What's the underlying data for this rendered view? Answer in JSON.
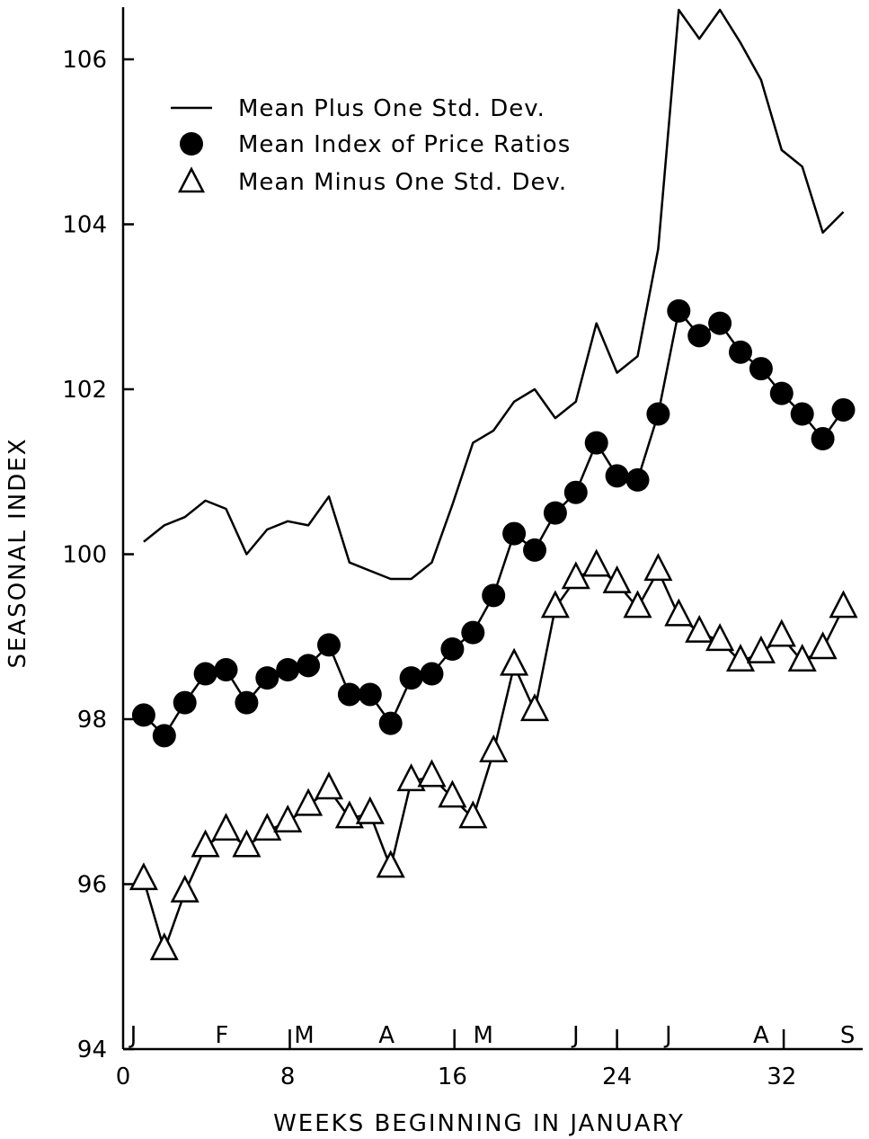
{
  "chart_data": {
    "type": "line",
    "xlabel": "WEEKS BEGINNING IN JANUARY",
    "ylabel": "SEASONAL INDEX",
    "xlim": [
      0,
      35
    ],
    "ylim": [
      94,
      106.6
    ],
    "x_ticks": [
      0,
      8,
      16,
      24,
      32
    ],
    "y_ticks": [
      94,
      96,
      98,
      100,
      102,
      104,
      106
    ],
    "grid": false,
    "legend_position": "top-left",
    "month_markers": [
      {
        "label": "J",
        "x": 0.5,
        "tick": null
      },
      {
        "label": "F",
        "x": 4.8,
        "tick": null
      },
      {
        "label": "M",
        "x": 8.8,
        "tick": 8.1
      },
      {
        "label": "A",
        "x": 12.8,
        "tick": null
      },
      {
        "label": "M",
        "x": 17.5,
        "tick": 16.1
      },
      {
        "label": "J",
        "x": 22.0,
        "tick": 24.0
      },
      {
        "label": "J",
        "x": 26.5,
        "tick": null
      },
      {
        "label": "A",
        "x": 31.0,
        "tick": 32.1
      },
      {
        "label": "S",
        "x": 35.2,
        "tick": null
      }
    ],
    "series": [
      {
        "name": "Mean Plus One Std. Dev.",
        "marker": "line",
        "x": [
          1,
          2,
          3,
          4,
          5,
          6,
          7,
          8,
          9,
          10,
          11,
          12,
          13,
          14,
          15,
          16,
          17,
          18,
          19,
          20,
          21,
          22,
          23,
          24,
          25,
          26,
          27,
          28,
          29,
          30,
          31,
          32,
          33,
          34,
          35
        ],
        "y": [
          100.15,
          100.35,
          100.45,
          100.65,
          100.55,
          100.0,
          100.3,
          100.4,
          100.35,
          100.7,
          99.9,
          99.8,
          99.7,
          99.7,
          99.9,
          100.6,
          101.35,
          101.5,
          101.85,
          102.0,
          101.65,
          101.85,
          102.8,
          102.2,
          102.4,
          103.7,
          106.6,
          106.25,
          106.6,
          106.2,
          105.75,
          104.9,
          104.7,
          103.9,
          104.15
        ]
      },
      {
        "name": "Mean Index of Price Ratios",
        "marker": "filled-circle",
        "x": [
          1,
          2,
          3,
          4,
          5,
          6,
          7,
          8,
          9,
          10,
          11,
          12,
          13,
          14,
          15,
          16,
          17,
          18,
          19,
          20,
          21,
          22,
          23,
          24,
          25,
          26,
          27,
          28,
          29,
          30,
          31,
          32,
          33,
          34,
          35
        ],
        "y": [
          98.05,
          97.8,
          98.2,
          98.55,
          98.6,
          98.2,
          98.5,
          98.6,
          98.65,
          98.9,
          98.3,
          98.3,
          97.95,
          98.5,
          98.55,
          98.85,
          99.05,
          99.5,
          100.25,
          100.05,
          100.5,
          100.75,
          101.35,
          100.95,
          100.9,
          101.7,
          102.95,
          102.65,
          102.8,
          102.45,
          102.25,
          101.95,
          101.7,
          101.4,
          101.75
        ]
      },
      {
        "name": "Mean Minus One Std. Dev.",
        "marker": "open-triangle",
        "x": [
          1,
          2,
          3,
          4,
          5,
          6,
          7,
          8,
          9,
          10,
          11,
          12,
          13,
          14,
          15,
          16,
          17,
          18,
          19,
          20,
          21,
          22,
          23,
          24,
          25,
          26,
          27,
          28,
          29,
          30,
          31,
          32,
          33,
          34,
          35
        ],
        "y": [
          96.05,
          95.2,
          95.9,
          96.45,
          96.65,
          96.45,
          96.65,
          96.75,
          96.95,
          97.15,
          96.8,
          96.85,
          96.2,
          97.25,
          97.3,
          97.05,
          96.8,
          97.6,
          98.65,
          98.1,
          99.35,
          99.7,
          99.85,
          99.65,
          99.35,
          99.8,
          99.25,
          99.05,
          98.95,
          98.7,
          98.8,
          99.0,
          98.7,
          98.85,
          99.35
        ]
      }
    ]
  }
}
